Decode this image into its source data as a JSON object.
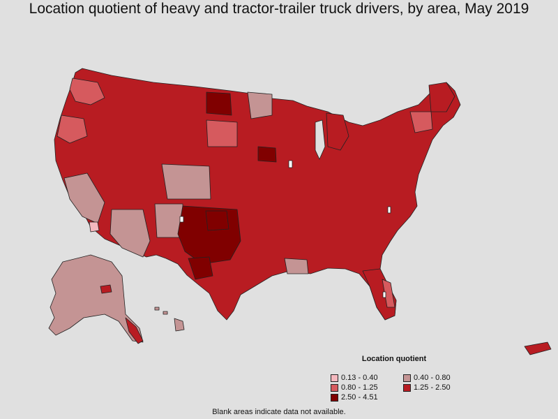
{
  "title": "Location quotient of heavy and tractor-trailer truck drivers, by area, May 2019",
  "legend": {
    "title": "Location quotient",
    "items": [
      {
        "label": "0.13 - 0.40",
        "color": "#f4b8be"
      },
      {
        "label": "0.40 - 0.80",
        "color": "#c49494"
      },
      {
        "label": "0.80 - 1.25",
        "color": "#d65a5e"
      },
      {
        "label": "1.25 - 2.50",
        "color": "#b81c22"
      },
      {
        "label": "2.50 - 4.51",
        "color": "#800000"
      }
    ]
  },
  "footnote": "Blank areas indicate data not available.",
  "colors": {
    "background": "#e0e0e0",
    "border": "#222222",
    "no_data": "#ffffff"
  }
}
